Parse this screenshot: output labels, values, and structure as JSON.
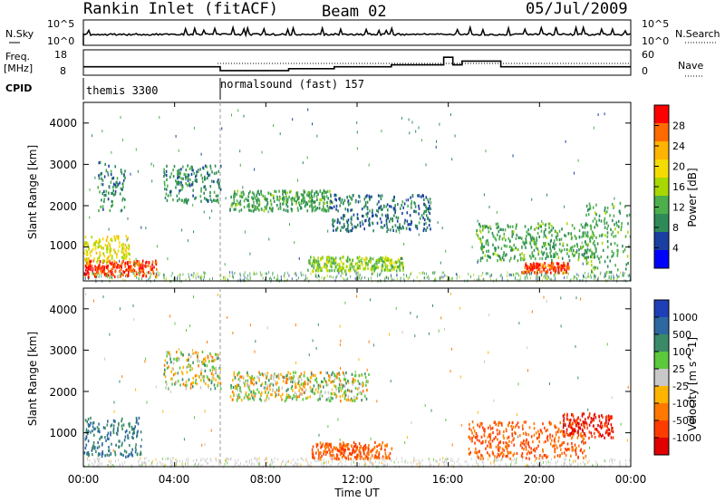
{
  "header": {
    "station": "Rankin Inlet (fitACF)",
    "beam": "Beam 02",
    "date": "05/Jul/2009"
  },
  "nsky_panel": {
    "left_label": "N.Sky",
    "right_label": "N.Search",
    "left_ticks": [
      "10^5",
      "10^0"
    ],
    "right_ticks": [
      "10^5",
      "10^0"
    ]
  },
  "freq_panel": {
    "left_label_line1": "Freq.",
    "left_label_line2": "[MHz]",
    "right_label": "Nave",
    "left_ticks": [
      "18",
      "8"
    ],
    "right_ticks": [
      "60",
      "0"
    ]
  },
  "cpid_panel": {
    "label": "CPID",
    "programs": [
      "themis 3300",
      "normalsound (fast) 157"
    ]
  },
  "power_panel": {
    "ylabel": "Slant Range [km]",
    "yticks": [
      "4000",
      "3000",
      "2000",
      "1000"
    ],
    "colorbar_label": "Power [dB]",
    "colorbar_ticks": [
      "28",
      "24",
      "20",
      "16",
      "12",
      "8",
      "4"
    ],
    "colorbar_colors": [
      "#ff0000",
      "#ff6a00",
      "#ffb400",
      "#f5dc00",
      "#a8d800",
      "#4caf4c",
      "#2e8b57",
      "#1a3fa0",
      "#0000ff"
    ]
  },
  "velocity_panel": {
    "ylabel": "Slant Range [km]",
    "yticks": [
      "4000",
      "3000",
      "2000",
      "1000"
    ],
    "colorbar_label": "Velocity [m s^-1]",
    "colorbar_ticks": [
      "1000",
      "500",
      "100",
      "25",
      "-25",
      "-100",
      "-500",
      "-1000"
    ],
    "colorbar_colors": [
      "#1f3fb8",
      "#2e68a0",
      "#3a8a68",
      "#5cc83c",
      "#c8c8c8",
      "#ffb400",
      "#ff7800",
      "#ff3c00",
      "#e00000"
    ]
  },
  "xaxis": {
    "label": "Time UT",
    "ticks": [
      "00:00",
      "04:00",
      "08:00",
      "12:00",
      "16:00",
      "20:00",
      "00:00"
    ]
  },
  "chart_data": {
    "type": "heatmap",
    "title": "Rankin Inlet (fitACF)",
    "subtitle": "Beam 02  05/Jul/2009",
    "xlabel": "Time UT",
    "ylabel": "Slant Range [km]",
    "xlim_hours": [
      0,
      24
    ],
    "ylim_km": [
      180,
      4500
    ],
    "cpid_switch_hour": 6.0,
    "frequency_mhz": [
      [
        0.0,
        11
      ],
      [
        6.0,
        11
      ],
      [
        6.0,
        9
      ],
      [
        9.0,
        9
      ],
      [
        9.0,
        10
      ],
      [
        11.0,
        10
      ],
      [
        11.0,
        11
      ],
      [
        13.5,
        11
      ],
      [
        13.5,
        12
      ],
      [
        15.8,
        12
      ],
      [
        15.8,
        16
      ],
      [
        16.2,
        16
      ],
      [
        16.2,
        12
      ],
      [
        16.6,
        12
      ],
      [
        16.6,
        14
      ],
      [
        18.3,
        14
      ],
      [
        18.3,
        11
      ],
      [
        24.0,
        11
      ]
    ],
    "power_regions": [
      {
        "t": [
          0.0,
          3.2
        ],
        "r": [
          300,
          700
        ],
        "power_db": 28
      },
      {
        "t": [
          0.0,
          2.0
        ],
        "r": [
          650,
          1300
        ],
        "power_db": 18
      },
      {
        "t": [
          0.6,
          1.8
        ],
        "r": [
          1900,
          3100
        ],
        "power_db": 8
      },
      {
        "t": [
          3.5,
          6.0
        ],
        "r": [
          2100,
          3000
        ],
        "power_db": 8
      },
      {
        "t": [
          6.4,
          10.8
        ],
        "r": [
          1900,
          2400
        ],
        "power_db": 10
      },
      {
        "t": [
          10.8,
          15.2
        ],
        "r": [
          1400,
          2300
        ],
        "power_db": 6
      },
      {
        "t": [
          9.8,
          14.0
        ],
        "r": [
          450,
          800
        ],
        "power_db": 14
      },
      {
        "t": [
          17.2,
          22.5
        ],
        "r": [
          700,
          1600
        ],
        "power_db": 10
      },
      {
        "t": [
          19.2,
          21.3
        ],
        "r": [
          400,
          650
        ],
        "power_db": 28
      },
      {
        "t": [
          22.0,
          24.0
        ],
        "r": [
          400,
          2100
        ],
        "power_db": 10
      }
    ],
    "velocity_regions": [
      {
        "t": [
          0.0,
          2.5
        ],
        "r": [
          450,
          1400
        ],
        "velocity_ms": 500
      },
      {
        "t": [
          3.5,
          6.0
        ],
        "r": [
          2100,
          3000
        ],
        "velocity_ms": 0
      },
      {
        "t": [
          6.4,
          12.5
        ],
        "r": [
          1800,
          2500
        ],
        "velocity_ms": 0
      },
      {
        "t": [
          10.0,
          13.5
        ],
        "r": [
          400,
          800
        ],
        "velocity_ms": -500
      },
      {
        "t": [
          16.8,
          22.0
        ],
        "r": [
          400,
          1300
        ],
        "velocity_ms": -500
      },
      {
        "t": [
          21.0,
          23.2
        ],
        "r": [
          900,
          1500
        ],
        "velocity_ms": -1000
      }
    ]
  }
}
